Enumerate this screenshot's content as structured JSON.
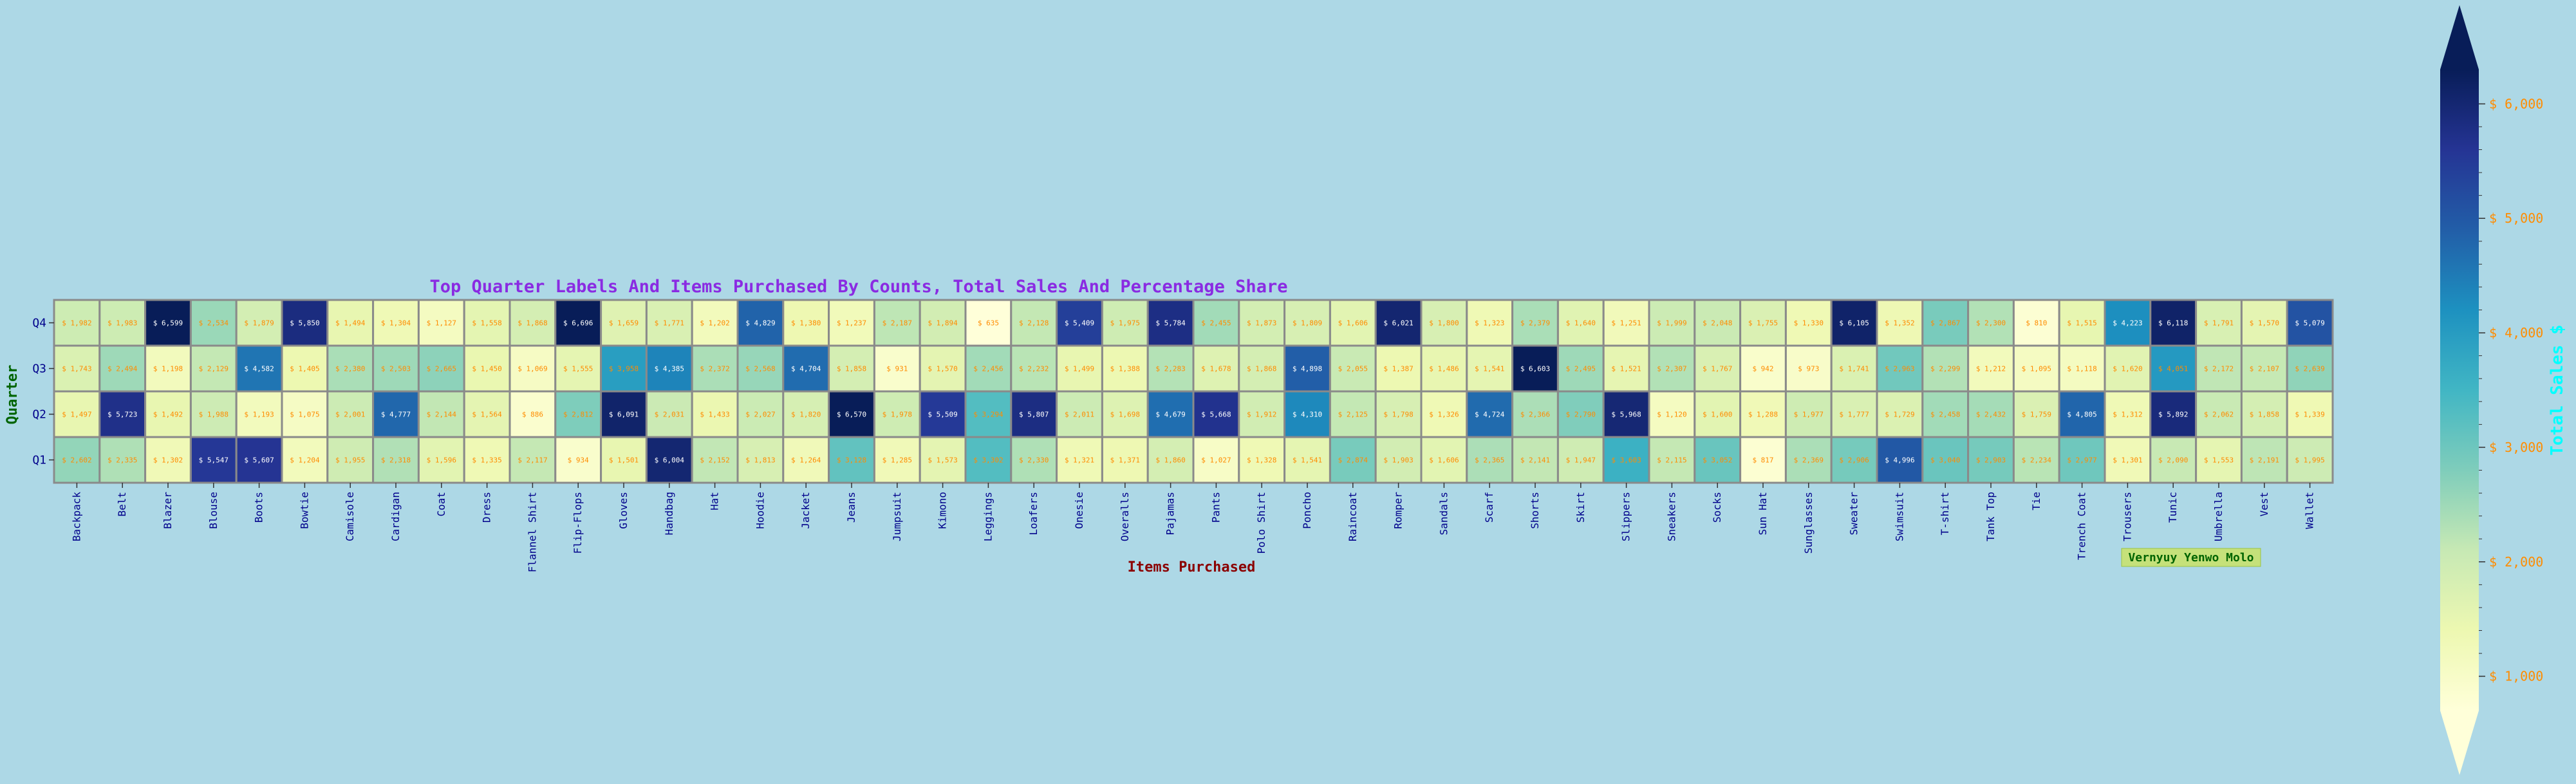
{
  "chart_data": {
    "type": "heatmap",
    "title": "Top Quarter Labels And Items Purchased By Counts, Total Sales And Percentage Share",
    "xlabel": "Items Purchased",
    "ylabel": "Quarter",
    "annotation": "Vernyuy Yenwo Molo",
    "value_prefix": "$ ",
    "colors": {
      "background": "#add8e6",
      "title": "#8a2be2",
      "xlabel": "#8b0000",
      "ylabel": "#006400",
      "tick_labels": "#00008b",
      "cell_label": "#ff8c00",
      "colorbar_label": "#00ffff",
      "colorbar_ticks": "#ff8c00",
      "annotation_bg": "#c5e17a",
      "annotation_text": "#006400"
    },
    "colormap": "YlGnBu",
    "color_range": [
      700,
      6300
    ],
    "colorbar": {
      "label": "Total Sales $",
      "ticks": [
        1000,
        2000,
        3000,
        4000,
        5000,
        6000
      ],
      "tick_labels": [
        "$ 1,000",
        "$ 2,000",
        "$ 3,000",
        "$ 4,000",
        "$ 5,000",
        "$ 6,000"
      ],
      "extend": "both"
    },
    "y_categories": [
      "Q4",
      "Q3",
      "Q2",
      "Q1"
    ],
    "x_categories": [
      "Backpack",
      "Belt",
      "Blazer",
      "Blouse",
      "Boots",
      "Bowtie",
      "Camisole",
      "Cardigan",
      "Coat",
      "Dress",
      "Flannel Shirt",
      "Flip-Flops",
      "Gloves",
      "Handbag",
      "Hat",
      "Hoodie",
      "Jacket",
      "Jeans",
      "Jumpsuit",
      "Kimono",
      "Leggings",
      "Loafers",
      "Onesie",
      "Overalls",
      "Pajamas",
      "Pants",
      "Polo Shirt",
      "Poncho",
      "Raincoat",
      "Romper",
      "Sandals",
      "Scarf",
      "Shorts",
      "Skirt",
      "Slippers",
      "Sneakers",
      "Socks",
      "Sun Hat",
      "Sunglasses",
      "Sweater",
      "Swimsuit",
      "T-shirt",
      "Tank Top",
      "Tie",
      "Trench Coat",
      "Trousers",
      "Tunic",
      "Umbrella",
      "Vest",
      "Wallet"
    ],
    "values": [
      [
        1982,
        1983,
        6599,
        2534,
        1879,
        5850,
        1494,
        1304,
        1127,
        1558,
        1868,
        6696,
        1659,
        1771,
        1202,
        4829,
        1380,
        1237,
        2187,
        1894,
        635,
        2128,
        5409,
        1975,
        5784,
        2455,
        1873,
        1809,
        1606,
        6021,
        1800,
        1323,
        2379,
        1640,
        1251,
        1999,
        2048,
        1755,
        1330,
        6105,
        1352,
        2867,
        2300,
        810,
        1515,
        4223,
        6118,
        1791,
        1570,
        5079
      ],
      [
        1743,
        2494,
        1198,
        2129,
        4582,
        1405,
        2380,
        2503,
        2665,
        1450,
        1069,
        1555,
        3958,
        4385,
        2372,
        2568,
        4704,
        1858,
        931,
        1570,
        2456,
        2232,
        1499,
        1388,
        2283,
        1678,
        1868,
        4898,
        2055,
        1387,
        1486,
        1541,
        6603,
        2495,
        1521,
        2307,
        1767,
        942,
        973,
        1741,
        2963,
        2299,
        1212,
        1095,
        1118,
        1620,
        4051,
        2172,
        2107,
        2639
      ],
      [
        1497,
        5723,
        1492,
        1988,
        1193,
        1075,
        2001,
        4777,
        2144,
        1564,
        886,
        2812,
        6091,
        2031,
        1433,
        2027,
        1820,
        6570,
        1978,
        5509,
        3294,
        5807,
        2011,
        1698,
        4679,
        5668,
        1912,
        4310,
        2125,
        1798,
        1326,
        4724,
        2366,
        2790,
        5968,
        1120,
        1600,
        1288,
        1977,
        1777,
        1729,
        2458,
        2432,
        1759,
        4805,
        1312,
        5892,
        2062,
        1858,
        1339
      ],
      [
        2602,
        2335,
        1302,
        5547,
        5607,
        1204,
        1955,
        2318,
        1596,
        1335,
        2117,
        934,
        1501,
        6004,
        2152,
        1813,
        1264,
        3128,
        1285,
        1573,
        3302,
        2330,
        1321,
        1371,
        1860,
        1027,
        1328,
        1541,
        2874,
        1903,
        1606,
        2365,
        2141,
        1947,
        3603,
        2115,
        3052,
        817,
        2369,
        2906,
        4996,
        3040,
        2903,
        2234,
        2977,
        1301,
        2090,
        1553,
        2191,
        1995
      ]
    ]
  }
}
